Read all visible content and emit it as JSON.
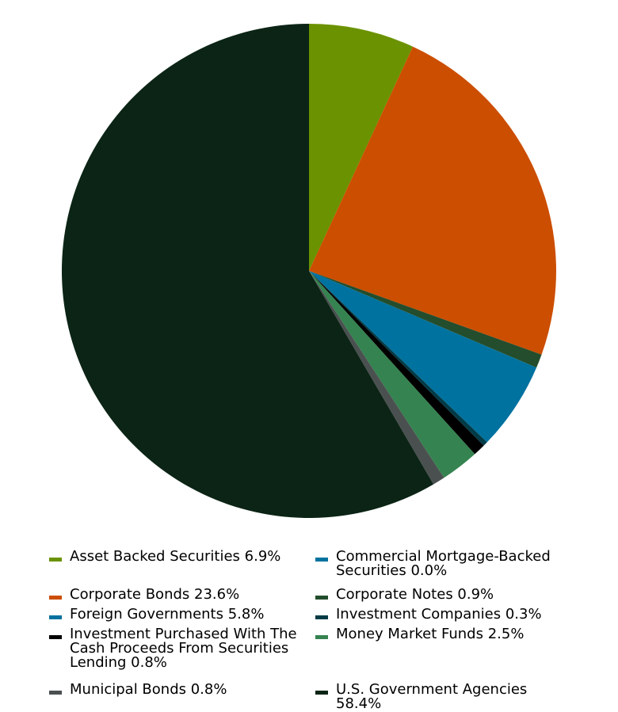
{
  "chart_data": {
    "type": "pie",
    "title": "",
    "slices": [
      {
        "label": "Asset Backed Securities 6.9%",
        "value": 6.9,
        "color": "#6b9200"
      },
      {
        "label": "Corporate Bonds 23.6%",
        "value": 23.6,
        "color": "#cc4e00"
      },
      {
        "label": "Corporate Notes 0.9%",
        "value": 0.9,
        "color": "#234d2c"
      },
      {
        "label": "Commercial Mortgage-Backed Securities 0.0%",
        "value": 0.0,
        "color": "#00729f"
      },
      {
        "label": "Foreign Governments 5.8%",
        "value": 5.8,
        "color": "#00729f"
      },
      {
        "label": "Investment Companies 0.3%",
        "value": 0.3,
        "color": "#003b47"
      },
      {
        "label": "Investment Purchased With The Cash Proceeds From Securities Lending 0.8%",
        "value": 0.8,
        "color": "#000000"
      },
      {
        "label": "Money Market Funds 2.5%",
        "value": 2.5,
        "color": "#358350"
      },
      {
        "label": "Municipal Bonds 0.8%",
        "value": 0.8,
        "color": "#4a5050"
      },
      {
        "label": "U.S. Government Agencies 58.4%",
        "value": 58.4,
        "color": "#0b2415"
      }
    ],
    "legend_position": "bottom"
  },
  "legend": [
    {
      "label": "Asset Backed Securities 6.9%",
      "color": "#6b9200"
    },
    {
      "label": "Commercial Mortgage-Backed Securities 0.0%",
      "color": "#00729f"
    },
    {
      "label": "Corporate Bonds 23.6%",
      "color": "#cc4e00"
    },
    {
      "label": "Corporate Notes 0.9%",
      "color": "#234d2c"
    },
    {
      "label": "Foreign Governments 5.8%",
      "color": "#00729f"
    },
    {
      "label": "Investment Companies 0.3%",
      "color": "#003b47"
    },
    {
      "label": "Investment Purchased With The Cash Proceeds From Securities Lending 0.8%",
      "color": "#000000"
    },
    {
      "label": "Money Market Funds 2.5%",
      "color": "#358350"
    },
    {
      "label": "Municipal Bonds 0.8%",
      "color": "#4a5050"
    },
    {
      "label": "U.S. Government Agencies 58.4%",
      "color": "#0b2415"
    }
  ]
}
